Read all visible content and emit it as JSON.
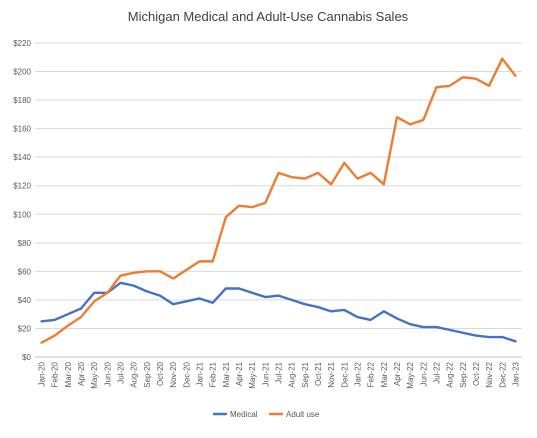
{
  "chart_data": {
    "type": "line",
    "title": "Michigan Medical and Adult-Use Cannabis Sales",
    "xlabel": "",
    "ylabel": "",
    "ylim": [
      0,
      220
    ],
    "yticks": [
      "$0",
      "$20",
      "$40",
      "$60",
      "$80",
      "$100",
      "$120",
      "$140",
      "$160",
      "$180",
      "$200",
      "$220"
    ],
    "grid": true,
    "legend_position": "bottom",
    "categories": [
      "Jan-20",
      "Feb-20",
      "Mar-20",
      "Apr-20",
      "May-20",
      "Jun-20",
      "Jul-20",
      "Aug-20",
      "Sep-20",
      "Oct-20",
      "Nov-20",
      "Dec-20",
      "Jan-21",
      "Feb-21",
      "Mar-21",
      "Apr-21",
      "May-21",
      "Jun-21",
      "Jul-21",
      "Aug-21",
      "Sep-21",
      "Oct-21",
      "Nov-21",
      "Dec-21",
      "Jan-22",
      "Feb-22",
      "Mar-22",
      "Apr-22",
      "May-22",
      "Jun-22",
      "Jul-22",
      "Aug-22",
      "Sep-22",
      "Oct-22",
      "Nov-22",
      "Dec-22",
      "Jan-23"
    ],
    "series": [
      {
        "name": "Medical",
        "color": "#4472c4",
        "values": [
          25,
          26,
          30,
          34,
          45,
          45,
          52,
          50,
          46,
          43,
          37,
          39,
          41,
          38,
          48,
          48,
          45,
          42,
          43,
          40,
          37,
          35,
          32,
          33,
          28,
          26,
          32,
          27,
          23,
          21,
          21,
          19,
          17,
          15,
          14,
          14,
          11
        ]
      },
      {
        "name": "Adult use",
        "color": "#ed7d31",
        "values": [
          10,
          15,
          22,
          28,
          39,
          45,
          57,
          59,
          60,
          60,
          55,
          61,
          67,
          67,
          98,
          106,
          105,
          108,
          129,
          126,
          125,
          129,
          121,
          136,
          125,
          129,
          121,
          168,
          163,
          166,
          189,
          190,
          196,
          195,
          190,
          209,
          197
        ]
      }
    ]
  }
}
